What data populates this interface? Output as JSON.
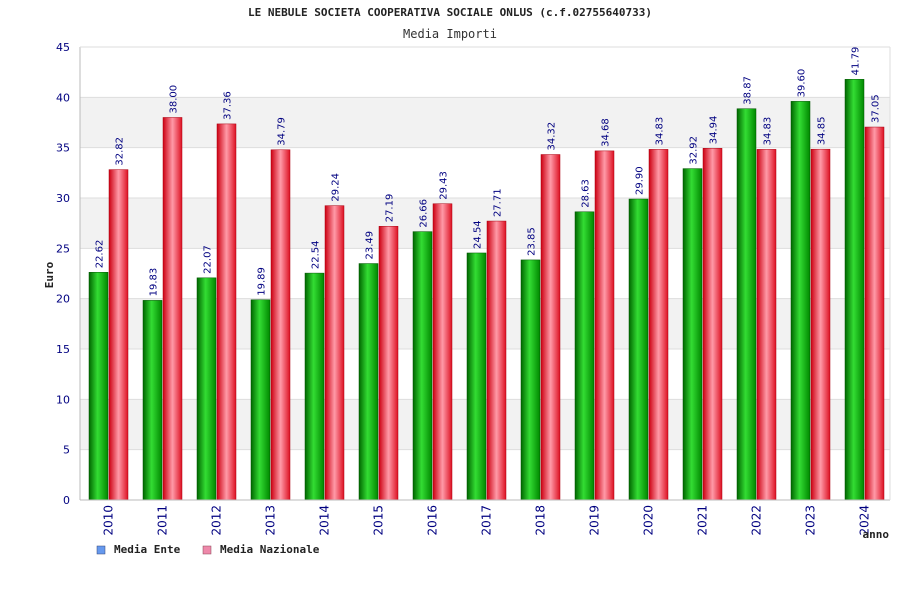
{
  "chart_data": {
    "type": "bar",
    "title": "LE NEBULE SOCIETA COOPERATIVA SOCIALE ONLUS (c.f.02755640733)",
    "subtitle": "Media Importi",
    "ylabel": "Euro",
    "xlabel": "anno",
    "ylim": [
      0,
      45
    ],
    "yticks": [
      0,
      5,
      10,
      15,
      20,
      25,
      30,
      35,
      40,
      45
    ],
    "grid": true,
    "legend_position": "bottom-left",
    "categories": [
      "2010",
      "2011",
      "2012",
      "2013",
      "2014",
      "2015",
      "2016",
      "2017",
      "2018",
      "2019",
      "2020",
      "2021",
      "2022",
      "2023",
      "2024"
    ],
    "series": [
      {
        "name": "Media Ente",
        "color": "#00aa00",
        "legend_color": "#6699ee",
        "values": [
          22.62,
          19.83,
          22.07,
          19.89,
          22.54,
          23.49,
          26.66,
          24.54,
          23.85,
          28.63,
          29.9,
          32.92,
          38.87,
          39.6,
          41.79
        ],
        "labels": [
          "22.62",
          "19.83",
          "22.07",
          "19.89",
          "22.54",
          "23.49",
          "26.66",
          "24.54",
          "23.85",
          "28.63",
          "29.90",
          "32.92",
          "38.87",
          "39.60",
          "41.79"
        ]
      },
      {
        "name": "Media Nazionale",
        "color": "#ee1122",
        "legend_color": "#ee88aa",
        "values": [
          32.82,
          38.0,
          37.36,
          34.79,
          29.24,
          27.19,
          29.43,
          27.71,
          34.32,
          34.68,
          34.83,
          34.94,
          34.83,
          34.85,
          37.05
        ],
        "labels": [
          "32.82",
          "38.00",
          "37.36",
          "34.79",
          "29.24",
          "27.19",
          "29.43",
          "27.71",
          "34.32",
          "34.68",
          "34.83",
          "34.94",
          "34.83",
          "34.85",
          "37.05"
        ]
      }
    ]
  }
}
